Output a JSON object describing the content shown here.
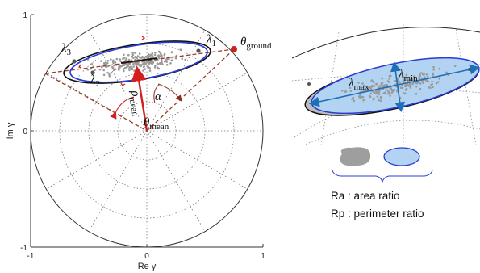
{
  "left_plot": {
    "ticks": {
      "x_left": "-1",
      "x_mid": "0",
      "x_right": "1",
      "y_top": "1",
      "y_mid": "0",
      "y_bottom": "-1"
    },
    "xlabel": "Re γ",
    "ylabel": "Im γ",
    "symbols": {
      "theta": "θ",
      "ground_sub": "ground",
      "mean_sub": "mean",
      "rho": "ρ",
      "alpha": "α",
      "lambda": "λ",
      "sub1": "1",
      "sub2": "2",
      "sub3": "3"
    }
  },
  "right_plot": {
    "lambda": "λ",
    "max_sub": "max",
    "min_sub": "min"
  },
  "legend": {
    "ra": "Ra : area ratio",
    "rp": "Rp : perimeter ratio"
  },
  "colors": {
    "red": "#d21f1f",
    "blue": "#2a3bd6",
    "ellipse_fill": "#b3d3f3",
    "dashed": "#9a3a2a"
  }
}
